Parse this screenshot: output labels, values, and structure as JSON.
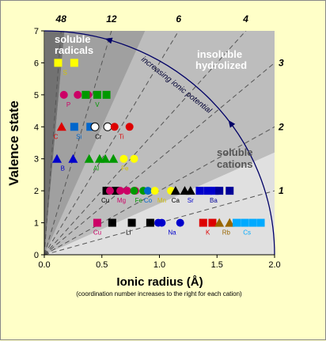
{
  "chart_data": {
    "type": "scatter",
    "title": "",
    "xlabel": "Ionic radius (Å)",
    "x_note": "(coordination number increases to the right for each cation)",
    "ylabel": "Valence state",
    "xlim": [
      0,
      2.0
    ],
    "ylim": [
      0,
      7
    ],
    "x_ticks": [
      "0.0",
      "0.5",
      "1.0",
      "1.5",
      "2.0"
    ],
    "y_ticks": [
      "0",
      "1",
      "2",
      "3",
      "4",
      "5",
      "6",
      "7"
    ],
    "ratio_lines": [
      {
        "label": "48",
        "value": 48
      },
      {
        "label": "12",
        "value": 12
      },
      {
        "label": "6",
        "value": 6
      },
      {
        "label": "4",
        "value": 4
      },
      {
        "label": "3",
        "value": 3
      },
      {
        "label": "2",
        "value": 2
      },
      {
        "label": "1",
        "value": 1
      }
    ],
    "regions": [
      {
        "label_lines": [
          "soluble",
          "radicals"
        ],
        "color": "#ffffff"
      },
      {
        "label_lines": [
          "insoluble",
          "hydrolized"
        ],
        "color": "#ffffff"
      },
      {
        "label_lines": [
          "soluble",
          "cations"
        ],
        "color": "#555555"
      }
    ],
    "arc_label": "increasing ionic potential",
    "elements": [
      {
        "name": "S",
        "valence": 6,
        "color": "#ffff00",
        "shape": "square",
        "radii": [
          0.12,
          0.26
        ],
        "label_r": 0.18
      },
      {
        "name": "P",
        "valence": 5,
        "color": "#cc0066",
        "shape": "circle",
        "radii": [
          0.17,
          0.29,
          0.38
        ],
        "label_r": 0.21
      },
      {
        "name": "V",
        "valence": 5,
        "color": "#009900",
        "shape": "square",
        "radii": [
          0.36,
          0.46,
          0.54
        ],
        "label_r": 0.46
      },
      {
        "name": "C",
        "valence": 4,
        "color": "#dd0000",
        "shape": "triangle",
        "radii": [
          0.15
        ],
        "label_r": 0.1
      },
      {
        "name": "Si",
        "valence": 4,
        "color": "#0066cc",
        "shape": "square",
        "radii": [
          0.26,
          0.4
        ],
        "label_r": 0.3
      },
      {
        "name": "Cr",
        "valence": 4,
        "color": "#ffffff",
        "shape": "circle",
        "radii": [
          0.44,
          0.55
        ],
        "label_r": 0.47
      },
      {
        "name": "Ti",
        "valence": 4,
        "color": "#dd0000",
        "shape": "circle",
        "radii": [
          0.61,
          0.74
        ],
        "label_r": 0.67
      },
      {
        "name": "B",
        "valence": 3,
        "color": "#0000cc",
        "shape": "triangle",
        "radii": [
          0.11,
          0.25
        ],
        "label_r": 0.16
      },
      {
        "name": "Al",
        "valence": 3,
        "color": "#009900",
        "shape": "triangle",
        "radii": [
          0.39,
          0.48,
          0.53,
          0.6
        ],
        "label_r": 0.45
      },
      {
        "name": "Fe",
        "valence": 3,
        "color": "#ffff00",
        "shape": "circle",
        "radii": [
          0.69,
          0.78
        ],
        "label_r": 0.7
      },
      {
        "name": "Cu",
        "valence": 2,
        "color": "#000000",
        "shape": "square",
        "radii": [
          0.54,
          0.62
        ],
        "label_r": 0.53
      },
      {
        "name": "Mg",
        "valence": 2,
        "color": "#cc0066",
        "shape": "circle",
        "radii": [
          0.57,
          0.66,
          0.72,
          0.79
        ],
        "label_r": 0.67
      },
      {
        "name": "Fe",
        "valence": 2,
        "color": "#009900",
        "shape": "circle",
        "radii": [
          0.78,
          0.86
        ],
        "label_r": 0.82
      },
      {
        "name": "Co",
        "valence": 2,
        "color": "#0066cc",
        "shape": "circle",
        "radii": [
          0.9
        ],
        "label_r": 0.9
      },
      {
        "name": "Mn",
        "valence": 2,
        "color": "#ffff00",
        "shape": "circle",
        "radii": [
          0.96,
          1.1
        ],
        "label_r": 1.02
      },
      {
        "name": "Ca",
        "valence": 2,
        "color": "#000000",
        "shape": "triangle",
        "radii": [
          1.14,
          1.22,
          1.27
        ],
        "label_r": 1.14
      },
      {
        "name": "Sr",
        "valence": 2,
        "color": "#0000cc",
        "shape": "square",
        "radii": [
          1.35,
          1.42,
          1.48
        ],
        "label_r": 1.27
      },
      {
        "name": "Ba",
        "valence": 2,
        "color": "#000099",
        "shape": "square",
        "radii": [
          1.52,
          1.61
        ],
        "label_r": 1.47
      },
      {
        "name": "Cu",
        "valence": 1,
        "color": "#cc0066",
        "shape": "square",
        "radii": [
          0.46
        ],
        "label_r": 0.46
      },
      {
        "name": "Li",
        "valence": 1,
        "color": "#000000",
        "shape": "square",
        "radii": [
          0.59,
          0.76,
          0.92
        ],
        "label_r": 0.73
      },
      {
        "name": "Na",
        "valence": 1,
        "color": "#0000cc",
        "shape": "circle",
        "radii": [
          0.99,
          1.02,
          1.18
        ],
        "label_r": 1.11
      },
      {
        "name": "K",
        "valence": 1,
        "color": "#dd0000",
        "shape": "square",
        "radii": [
          1.38,
          1.46
        ],
        "label_r": 1.42
      },
      {
        "name": "Rb",
        "valence": 1,
        "color": "#996600",
        "shape": "triangle",
        "radii": [
          1.52,
          1.61
        ],
        "label_r": 1.58
      },
      {
        "name": "Cs",
        "valence": 1,
        "color": "#00aaff",
        "shape": "square",
        "radii": [
          1.67,
          1.74,
          1.81,
          1.88
        ],
        "label_r": 1.76
      }
    ]
  }
}
